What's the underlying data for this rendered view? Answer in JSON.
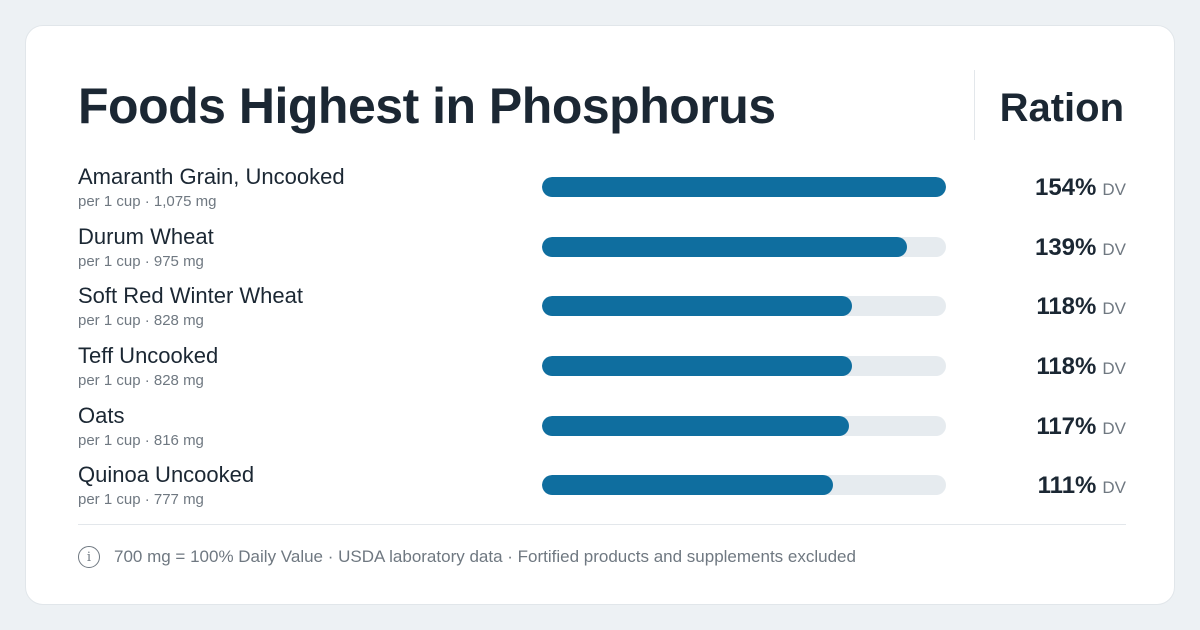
{
  "header": {
    "title": "Foods Highest in Phosphorus",
    "brand": "Ration"
  },
  "chart_data": {
    "type": "bar",
    "orientation": "horizontal",
    "title": "Foods Highest in Phosphorus",
    "categories": [
      "Amaranth Grain, Uncooked",
      "Durum Wheat",
      "Soft Red Winter Wheat",
      "Teff Uncooked",
      "Oats",
      "Quinoa Uncooked"
    ],
    "servings": [
      "per 1 cup · 1,075 mg",
      "per 1 cup · 975 mg",
      "per 1 cup · 828 mg",
      "per 1 cup · 828 mg",
      "per 1 cup · 816 mg",
      "per 1 cup · 777 mg"
    ],
    "values": [
      154,
      139,
      118,
      118,
      117,
      111
    ],
    "value_labels": [
      "154%",
      "139%",
      "118%",
      "118%",
      "117%",
      "111%"
    ],
    "value_unit": "DV",
    "xlim": [
      0,
      154
    ],
    "grid": false,
    "bar_color": "#0f6e9f",
    "track_color": "#e6ebef"
  },
  "footer": {
    "icon": "info-icon",
    "icon_glyph": "i",
    "note": "700 mg = 100% Daily Value · USDA laboratory data · Fortified products and supplements excluded"
  }
}
